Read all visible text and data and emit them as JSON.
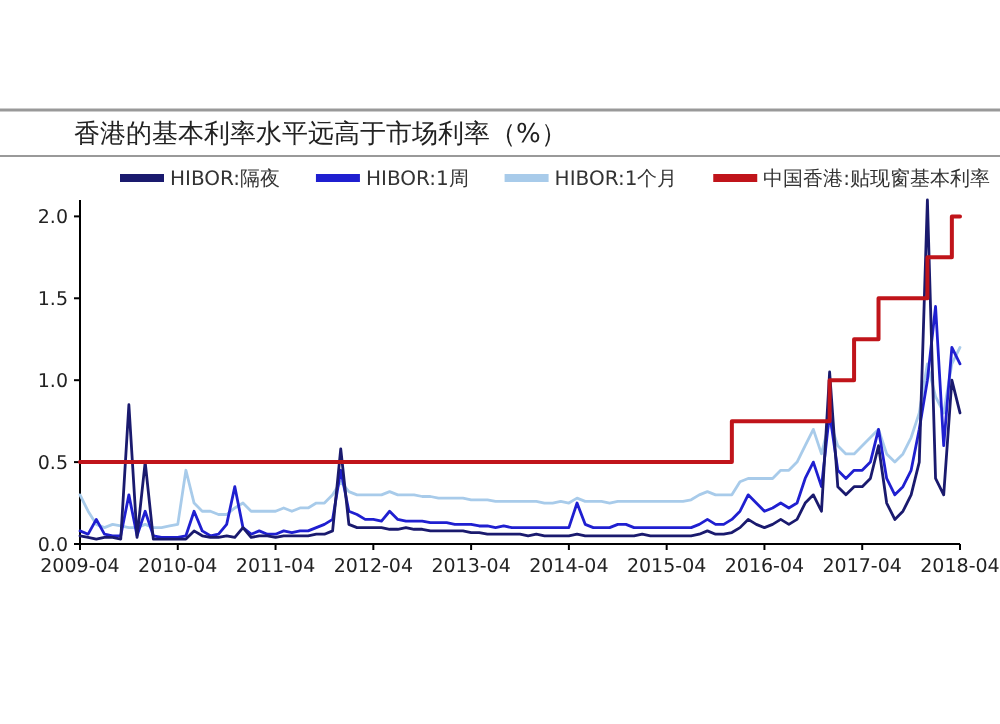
{
  "chart_data": {
    "type": "line",
    "title": "香港的基本利率水平远高于市场利率（%）",
    "legend": "top",
    "xlim": [
      "2009-04",
      "2018-04"
    ],
    "ylim": [
      0,
      2.1
    ],
    "xticks": [
      "2009-04",
      "2010-04",
      "2011-04",
      "2012-04",
      "2013-04",
      "2014-04",
      "2015-04",
      "2016-04",
      "2017-04",
      "2018-04"
    ],
    "yticks": [
      {
        "value": 0,
        "label": "0.0"
      },
      {
        "value": 0.5,
        "label": "0.5"
      },
      {
        "value": 1,
        "label": "1.0"
      },
      {
        "value": 1.5,
        "label": "1.5"
      },
      {
        "value": 2,
        "label": "2.0"
      }
    ],
    "x": [
      "2009-04",
      "2009-05",
      "2009-06",
      "2009-07",
      "2009-08",
      "2009-09",
      "2009-10",
      "2009-11",
      "2009-12",
      "2010-01",
      "2010-02",
      "2010-03",
      "2010-04",
      "2010-05",
      "2010-06",
      "2010-07",
      "2010-08",
      "2010-09",
      "2010-10",
      "2010-11",
      "2010-12",
      "2011-01",
      "2011-02",
      "2011-03",
      "2011-04",
      "2011-05",
      "2011-06",
      "2011-07",
      "2011-08",
      "2011-09",
      "2011-10",
      "2011-11",
      "2011-12",
      "2012-01",
      "2012-02",
      "2012-03",
      "2012-04",
      "2012-05",
      "2012-06",
      "2012-07",
      "2012-08",
      "2012-09",
      "2012-10",
      "2012-11",
      "2012-12",
      "2013-01",
      "2013-02",
      "2013-03",
      "2013-04",
      "2013-05",
      "2013-06",
      "2013-07",
      "2013-08",
      "2013-09",
      "2013-10",
      "2013-11",
      "2013-12",
      "2014-01",
      "2014-02",
      "2014-03",
      "2014-04",
      "2014-05",
      "2014-06",
      "2014-07",
      "2014-08",
      "2014-09",
      "2014-10",
      "2014-11",
      "2014-12",
      "2015-01",
      "2015-02",
      "2015-03",
      "2015-04",
      "2015-05",
      "2015-06",
      "2015-07",
      "2015-08",
      "2015-09",
      "2015-10",
      "2015-11",
      "2015-12",
      "2016-01",
      "2016-02",
      "2016-03",
      "2016-04",
      "2016-05",
      "2016-06",
      "2016-07",
      "2016-08",
      "2016-09",
      "2016-10",
      "2016-11",
      "2016-12",
      "2017-01",
      "2017-02",
      "2017-03",
      "2017-04",
      "2017-05",
      "2017-06",
      "2017-07",
      "2017-08",
      "2017-09",
      "2017-10",
      "2017-11",
      "2017-12",
      "2018-01",
      "2018-02",
      "2018-03",
      "2018-04"
    ],
    "series": [
      {
        "name": "HIBOR:1个月",
        "color": "#a8cbea",
        "values": [
          0.3,
          0.2,
          0.12,
          0.1,
          0.12,
          0.11,
          0.1,
          0.1,
          0.12,
          0.1,
          0.1,
          0.11,
          0.12,
          0.45,
          0.25,
          0.2,
          0.2,
          0.18,
          0.18,
          0.22,
          0.25,
          0.2,
          0.2,
          0.2,
          0.2,
          0.22,
          0.2,
          0.22,
          0.22,
          0.25,
          0.25,
          0.3,
          0.38,
          0.32,
          0.3,
          0.3,
          0.3,
          0.3,
          0.32,
          0.3,
          0.3,
          0.3,
          0.29,
          0.29,
          0.28,
          0.28,
          0.28,
          0.28,
          0.27,
          0.27,
          0.27,
          0.26,
          0.26,
          0.26,
          0.26,
          0.26,
          0.26,
          0.25,
          0.25,
          0.26,
          0.25,
          0.28,
          0.26,
          0.26,
          0.26,
          0.25,
          0.26,
          0.26,
          0.26,
          0.26,
          0.26,
          0.26,
          0.26,
          0.26,
          0.26,
          0.27,
          0.3,
          0.32,
          0.3,
          0.3,
          0.3,
          0.38,
          0.4,
          0.4,
          0.4,
          0.4,
          0.45,
          0.45,
          0.5,
          0.6,
          0.7,
          0.55,
          0.75,
          0.6,
          0.55,
          0.55,
          0.6,
          0.65,
          0.7,
          0.55,
          0.5,
          0.55,
          0.65,
          0.8,
          1.1,
          0.9,
          0.8,
          1.1,
          1.2
        ]
      },
      {
        "name": "HIBOR:1周",
        "color": "#1f1fd0",
        "values": [
          0.08,
          0.06,
          0.15,
          0.06,
          0.05,
          0.05,
          0.3,
          0.05,
          0.2,
          0.05,
          0.04,
          0.04,
          0.04,
          0.05,
          0.2,
          0.08,
          0.05,
          0.06,
          0.12,
          0.35,
          0.1,
          0.06,
          0.08,
          0.06,
          0.06,
          0.08,
          0.07,
          0.08,
          0.08,
          0.1,
          0.12,
          0.15,
          0.45,
          0.2,
          0.18,
          0.15,
          0.15,
          0.14,
          0.2,
          0.15,
          0.14,
          0.14,
          0.14,
          0.13,
          0.13,
          0.13,
          0.12,
          0.12,
          0.12,
          0.11,
          0.11,
          0.1,
          0.11,
          0.1,
          0.1,
          0.1,
          0.1,
          0.1,
          0.1,
          0.1,
          0.1,
          0.25,
          0.12,
          0.1,
          0.1,
          0.1,
          0.12,
          0.12,
          0.1,
          0.1,
          0.1,
          0.1,
          0.1,
          0.1,
          0.1,
          0.1,
          0.12,
          0.15,
          0.12,
          0.12,
          0.15,
          0.2,
          0.3,
          0.25,
          0.2,
          0.22,
          0.25,
          0.22,
          0.25,
          0.4,
          0.5,
          0.35,
          0.8,
          0.45,
          0.4,
          0.45,
          0.45,
          0.5,
          0.7,
          0.4,
          0.3,
          0.35,
          0.45,
          0.7,
          1.0,
          1.45,
          0.6,
          1.2,
          1.1
        ]
      },
      {
        "name": "HIBOR:隔夜",
        "color": "#1a1a6e",
        "values": [
          0.05,
          0.04,
          0.03,
          0.04,
          0.04,
          0.03,
          0.85,
          0.04,
          0.5,
          0.03,
          0.03,
          0.03,
          0.03,
          0.03,
          0.08,
          0.05,
          0.04,
          0.04,
          0.05,
          0.04,
          0.1,
          0.04,
          0.05,
          0.05,
          0.04,
          0.05,
          0.05,
          0.05,
          0.05,
          0.06,
          0.06,
          0.08,
          0.58,
          0.12,
          0.1,
          0.1,
          0.1,
          0.1,
          0.09,
          0.09,
          0.1,
          0.09,
          0.09,
          0.08,
          0.08,
          0.08,
          0.08,
          0.08,
          0.07,
          0.07,
          0.06,
          0.06,
          0.06,
          0.06,
          0.06,
          0.05,
          0.06,
          0.05,
          0.05,
          0.05,
          0.05,
          0.06,
          0.05,
          0.05,
          0.05,
          0.05,
          0.05,
          0.05,
          0.05,
          0.06,
          0.05,
          0.05,
          0.05,
          0.05,
          0.05,
          0.05,
          0.06,
          0.08,
          0.06,
          0.06,
          0.07,
          0.1,
          0.15,
          0.12,
          0.1,
          0.12,
          0.15,
          0.12,
          0.15,
          0.25,
          0.3,
          0.2,
          1.05,
          0.35,
          0.3,
          0.35,
          0.35,
          0.4,
          0.6,
          0.25,
          0.15,
          0.2,
          0.3,
          0.5,
          2.1,
          0.4,
          0.3,
          1.0,
          0.8
        ]
      },
      {
        "name": "中国香港:贴现窗基本利率",
        "color": "#c0141a",
        "type": "step",
        "x": [
          "2009-04",
          "2015-12",
          "2016-12",
          "2017-03",
          "2017-06",
          "2017-12",
          "2018-03",
          "2018-04"
        ],
        "values": [
          0.5,
          0.75,
          1.0,
          1.25,
          1.5,
          1.75,
          2.0,
          2.0
        ]
      }
    ]
  }
}
